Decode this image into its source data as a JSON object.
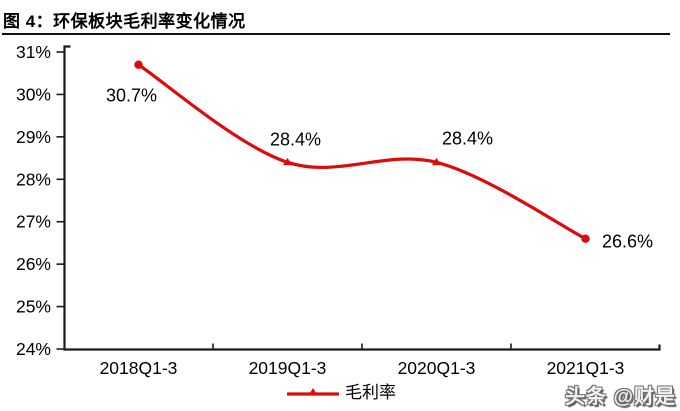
{
  "title": "图 4：环保板块毛利率变化情况",
  "watermark": "头条 @财是",
  "legend": {
    "label": "毛利率"
  },
  "colors": {
    "line": "#dd0b0b",
    "axis": "#1a1a1a",
    "text": "#000000",
    "title_rule": "#111111"
  },
  "chart_data": {
    "type": "line",
    "title": "环保板块毛利率变化情况",
    "categories": [
      "2018Q1-3",
      "2019Q1-3",
      "2020Q1-3",
      "2021Q1-3"
    ],
    "series": [
      {
        "name": "毛利率",
        "values": [
          30.7,
          28.4,
          28.4,
          26.6
        ]
      }
    ],
    "data_labels": [
      "30.7%",
      "28.4%",
      "28.4%",
      "26.6%"
    ],
    "y_ticks": [
      "31%",
      "30%",
      "29%",
      "28%",
      "27%",
      "26%",
      "25%",
      "24%"
    ],
    "ylim": [
      24,
      31
    ],
    "xlabel": "",
    "ylabel": "",
    "grid": false,
    "smooth": true,
    "legend_position": "bottom"
  }
}
